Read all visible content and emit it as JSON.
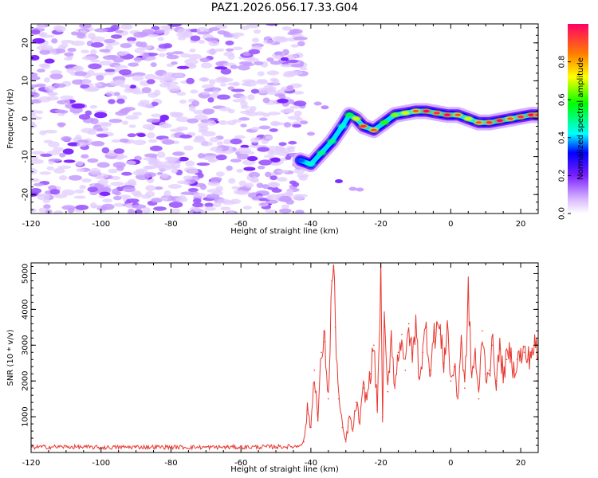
{
  "title": "PAZ1.2026.056.17.33.G04",
  "chart_data": [
    {
      "type": "heatmap",
      "name": "spectrogram",
      "xlabel": "Height of straight line (km)",
      "ylabel": "Frequency (Hz)",
      "xlim": [
        -120,
        25
      ],
      "ylim": [
        -25,
        25
      ],
      "xticks": [
        -120,
        -100,
        -80,
        -60,
        -40,
        -20,
        0,
        20
      ],
      "yticks": [
        -20,
        -10,
        0,
        10,
        20
      ],
      "noise_region_x": [
        -120,
        -42
      ],
      "signal_ridge": {
        "x": [
          -43,
          -40,
          -37,
          -34,
          -31,
          -29,
          -27,
          -25,
          -22,
          -19,
          -16,
          -13,
          -10,
          -7,
          -4,
          -1,
          2,
          5,
          8,
          11,
          14,
          17,
          20,
          23,
          25
        ],
        "y": [
          -11,
          -12,
          -9,
          -6,
          -2,
          1,
          0,
          -2,
          -3,
          -1,
          1,
          1.5,
          2,
          2,
          1.5,
          1,
          1,
          0,
          -1,
          -1,
          -0.5,
          0,
          0.5,
          1,
          1
        ],
        "amplitude": [
          0.35,
          0.45,
          0.5,
          0.5,
          0.45,
          0.55,
          0.7,
          0.8,
          0.75,
          0.6,
          0.65,
          0.7,
          0.75,
          0.85,
          0.8,
          0.85,
          0.75,
          0.7,
          0.75,
          0.8,
          0.85,
          0.75,
          0.8,
          0.85,
          0.8
        ]
      },
      "colorbar": {
        "label": "Normalized spectral amplitude",
        "ticks": [
          "0.0",
          "0.2",
          "0.4",
          "0.6",
          "0.8"
        ],
        "range": [
          0,
          1
        ]
      }
    },
    {
      "type": "line",
      "name": "snr",
      "xlabel": "Height of straight line (km)",
      "ylabel": "SNR (10 * v/v)",
      "xlim": [
        -120,
        25
      ],
      "ylim": [
        0,
        5300
      ],
      "xticks": [
        -120,
        -100,
        -80,
        -60,
        -40,
        -20,
        0,
        20
      ],
      "yticks": [
        1000,
        2000,
        3000,
        4000,
        5000
      ],
      "color": "#e8372f",
      "series": [
        {
          "name": "SNR",
          "x": [
            -120,
            -110,
            -100,
            -90,
            -80,
            -70,
            -60,
            -50,
            -44,
            -42,
            -41,
            -40,
            -39,
            -38,
            -37,
            -36,
            -35,
            -34,
            -33.5,
            -33,
            -32,
            -31,
            -30,
            -29,
            -28,
            -27,
            -26,
            -25,
            -24,
            -23,
            -22,
            -21,
            -20,
            -19.5,
            -19,
            -18,
            -17,
            -16,
            -15,
            -14,
            -13,
            -12,
            -11,
            -10,
            -9,
            -8,
            -7,
            -6,
            -5,
            -4,
            -3,
            -2,
            -1,
            0,
            1,
            2,
            3,
            4,
            5,
            6,
            7,
            8,
            9,
            10,
            11,
            12,
            13,
            14,
            15,
            16,
            17,
            18,
            19,
            20,
            21,
            22,
            23,
            24,
            25
          ],
          "y": [
            150,
            160,
            140,
            155,
            150,
            145,
            150,
            160,
            170,
            300,
            1200,
            700,
            2300,
            900,
            2800,
            3100,
            1500,
            4800,
            5200,
            3500,
            1500,
            700,
            300,
            1000,
            600,
            1400,
            800,
            1800,
            1500,
            2200,
            3000,
            1200,
            4900,
            1000,
            3500,
            1700,
            3400,
            1800,
            2800,
            3300,
            2300,
            3600,
            2600,
            3600,
            2100,
            2800,
            3500,
            2300,
            3100,
            3600,
            3300,
            2500,
            3600,
            2000,
            2400,
            1500,
            3200,
            1800,
            4400,
            2100,
            2800,
            1500,
            3400,
            2200,
            2300,
            3000,
            2000,
            2900,
            2200,
            2600,
            2800,
            2300,
            2600,
            2700,
            2800,
            2600,
            2800,
            3000,
            2700
          ]
        }
      ]
    }
  ]
}
